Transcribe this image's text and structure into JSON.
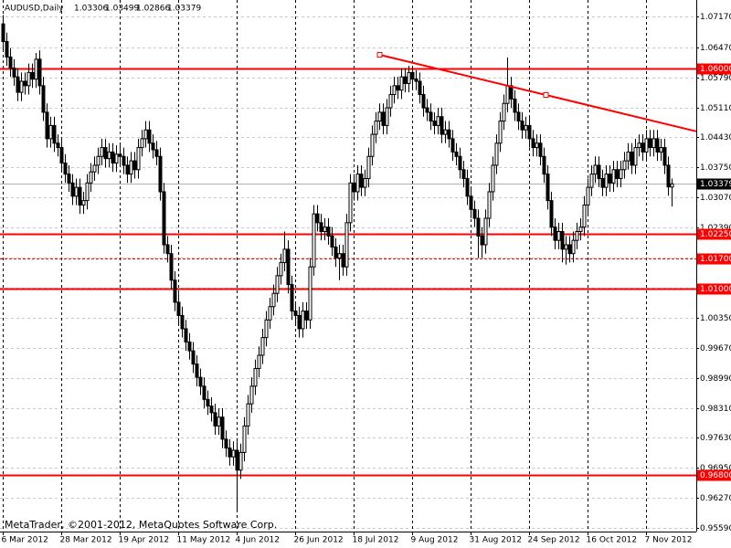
{
  "chart_data": {
    "type": "candlestick",
    "symbol": "AUDUSD,Daily",
    "copyright": "MetaTrader, ©2001-2012, MetaQuotes Software Corp.",
    "ylim": [
      0.9551,
      1.0754
    ],
    "yticks": [
      {
        "value": 1.0717,
        "label": "1.07170"
      },
      {
        "value": 1.0647,
        "label": "1.06470"
      },
      {
        "value": 1.0579,
        "label": "1.05790"
      },
      {
        "value": 1.0511,
        "label": "1.05110"
      },
      {
        "value": 1.0443,
        "label": "1.04430"
      },
      {
        "value": 1.0375,
        "label": "1.03750"
      },
      {
        "value": 1.0307,
        "label": "1.03070"
      },
      {
        "value": 1.0239,
        "label": "1.02390"
      },
      {
        "value": 1.0171,
        "label": "1.01710"
      },
      {
        "value": 1.0103,
        "label": "1.01030"
      },
      {
        "value": 1.0035,
        "label": "1.00350"
      },
      {
        "value": 0.9967,
        "label": "0.99670"
      },
      {
        "value": 0.9899,
        "label": "0.98990"
      },
      {
        "value": 0.9831,
        "label": "0.98310"
      },
      {
        "value": 0.9763,
        "label": "0.97630"
      },
      {
        "value": 0.9695,
        "label": "0.96950"
      },
      {
        "value": 0.9627,
        "label": "0.96270"
      },
      {
        "value": 0.9559,
        "label": "0.95590"
      }
    ],
    "grid": true,
    "bull_color": "#ffffff",
    "bear_color": "#000000",
    "level_color": "#ff0000",
    "levels": [
      {
        "value": 1.06,
        "label": "1.06000",
        "style": "solid"
      },
      {
        "value": 1.0225,
        "label": "1.02250",
        "style": "solid"
      },
      {
        "value": 1.017,
        "label": "1.01700",
        "style": "dashed"
      },
      {
        "value": 1.01,
        "label": "1.01000",
        "style": "solid"
      },
      {
        "value": 0.968,
        "label": "0.96800",
        "style": "solid"
      }
    ],
    "trendline": {
      "x": [
        103,
        148.5
      ],
      "y": [
        1.063,
        1.0539
      ]
    },
    "categories": [
      "6 Mar 2012",
      null,
      null,
      null,
      null,
      null,
      null,
      null,
      null,
      null,
      null,
      null,
      null,
      null,
      null,
      null,
      "28 Mar 2012",
      null,
      null,
      null,
      null,
      null,
      null,
      null,
      null,
      null,
      null,
      null,
      null,
      null,
      null,
      null,
      "19 Apr 2012",
      null,
      null,
      null,
      null,
      null,
      null,
      null,
      null,
      null,
      null,
      null,
      null,
      null,
      null,
      null,
      "11 May 2012",
      null,
      null,
      null,
      null,
      null,
      null,
      null,
      null,
      null,
      null,
      null,
      null,
      null,
      null,
      null,
      "4 Jun 2012",
      null,
      null,
      null,
      null,
      null,
      null,
      null,
      null,
      null,
      null,
      null,
      null,
      null,
      null,
      null,
      "26 Jun 2012",
      null,
      null,
      null,
      null,
      null,
      null,
      null,
      null,
      null,
      null,
      null,
      null,
      null,
      null,
      null,
      "18 Jul 2012",
      null,
      null,
      null,
      null,
      null,
      null,
      null,
      null,
      null,
      null,
      null,
      null,
      null,
      null,
      null,
      "9 Aug 2012",
      null,
      null,
      null,
      null,
      null,
      null,
      null,
      null,
      null,
      null,
      null,
      null,
      null,
      null,
      null,
      "31 Aug 2012",
      null,
      null,
      null,
      null,
      null,
      null,
      null,
      null,
      null,
      null,
      null,
      null,
      null,
      null,
      null,
      "24 Sep 2012",
      null,
      null,
      null,
      null,
      null,
      null,
      null,
      null,
      null,
      null,
      null,
      null,
      null,
      null,
      null,
      "16 Oct 2012",
      null,
      null,
      null,
      null,
      null,
      null,
      null,
      null,
      null,
      null,
      null,
      null,
      null,
      null,
      null,
      "7 Nov 2012",
      null,
      null,
      null,
      null,
      null,
      null,
      null
    ],
    "ohlc": [
      [
        1.07,
        1.072,
        1.064,
        1.066
      ],
      [
        1.066,
        1.068,
        1.0605,
        1.0625
      ],
      [
        1.0625,
        1.0645,
        1.058,
        1.06
      ],
      [
        1.06,
        1.062,
        1.056,
        1.058
      ],
      [
        1.058,
        1.06,
        1.0525,
        1.0545
      ],
      [
        1.0545,
        1.059,
        1.0525,
        1.057
      ],
      [
        1.057,
        1.059,
        1.054,
        1.056
      ],
      [
        1.056,
        1.061,
        1.054,
        1.059
      ],
      [
        1.059,
        1.061,
        1.0555,
        1.0575
      ],
      [
        1.0575,
        1.0634,
        1.0555,
        1.062
      ],
      [
        1.062,
        1.064,
        1.054,
        1.056
      ],
      [
        1.056,
        1.058,
        1.048,
        1.05
      ],
      [
        1.05,
        1.052,
        1.042,
        1.044
      ],
      [
        1.044,
        1.049,
        1.042,
        1.047
      ],
      [
        1.047,
        1.049,
        1.041,
        1.043
      ],
      [
        1.043,
        1.045,
        1.04,
        1.042
      ],
      [
        1.042,
        1.044,
        1.0365,
        1.0385
      ],
      [
        1.0385,
        1.0405,
        1.034,
        1.036
      ],
      [
        1.036,
        1.038,
        1.032,
        1.034
      ],
      [
        1.034,
        1.036,
        1.029,
        1.031
      ],
      [
        1.031,
        1.035,
        1.029,
        1.033
      ],
      [
        1.033,
        1.035,
        1.027,
        1.029
      ],
      [
        1.029,
        1.032,
        1.027,
        1.03
      ],
      [
        1.03,
        1.036,
        1.028,
        1.034
      ],
      [
        1.034,
        1.0385,
        1.032,
        1.0365
      ],
      [
        1.0365,
        1.04,
        1.0345,
        1.038
      ],
      [
        1.038,
        1.042,
        1.036,
        1.04
      ],
      [
        1.04,
        1.044,
        1.038,
        1.042
      ],
      [
        1.042,
        1.044,
        1.0375,
        1.0395
      ],
      [
        1.0395,
        1.043,
        1.0375,
        1.041
      ],
      [
        1.041,
        1.043,
        1.0365,
        1.0385
      ],
      [
        1.0385,
        1.0425,
        1.0365,
        1.0405
      ],
      [
        1.0405,
        1.0425,
        1.038,
        1.04
      ],
      [
        1.04,
        1.042,
        1.036,
        1.038
      ],
      [
        1.038,
        1.04,
        1.034,
        1.036
      ],
      [
        1.036,
        1.041,
        1.034,
        1.039
      ],
      [
        1.039,
        1.041,
        1.035,
        1.037
      ],
      [
        1.037,
        1.044,
        1.035,
        1.042
      ],
      [
        1.042,
        1.046,
        1.04,
        1.044
      ],
      [
        1.044,
        1.048,
        1.042,
        1.046
      ],
      [
        1.046,
        1.048,
        1.041,
        1.043
      ],
      [
        1.043,
        1.045,
        1.0395,
        1.0415
      ],
      [
        1.0415,
        1.0435,
        1.038,
        1.04
      ],
      [
        1.04,
        1.042,
        1.03,
        1.032
      ],
      [
        1.032,
        1.034,
        1.018,
        1.02
      ],
      [
        1.02,
        1.022,
        1.016,
        1.018
      ],
      [
        1.018,
        1.02,
        1.01,
        1.012
      ],
      [
        1.012,
        1.014,
        1.005,
        1.007
      ],
      [
        1.007,
        1.009,
        1.002,
        1.004
      ],
      [
        1.004,
        1.006,
        0.999,
        1.001
      ],
      [
        1.001,
        1.003,
        0.996,
        0.998
      ],
      [
        0.998,
        1.0,
        0.994,
        0.996
      ],
      [
        0.996,
        0.998,
        0.991,
        0.993
      ],
      [
        0.993,
        0.995,
        0.988,
        0.99
      ],
      [
        0.99,
        0.992,
        0.986,
        0.988
      ],
      [
        0.988,
        0.99,
        0.983,
        0.985
      ],
      [
        0.985,
        0.987,
        0.9815,
        0.9835
      ],
      [
        0.9835,
        0.9855,
        0.98,
        0.982
      ],
      [
        0.982,
        0.984,
        0.977,
        0.979
      ],
      [
        0.979,
        0.983,
        0.977,
        0.981
      ],
      [
        0.981,
        0.983,
        0.974,
        0.976
      ],
      [
        0.976,
        0.978,
        0.972,
        0.974
      ],
      [
        0.974,
        0.976,
        0.97,
        0.972
      ],
      [
        0.972,
        0.9755,
        0.97,
        0.9735
      ],
      [
        0.9735,
        0.9755,
        0.9596,
        0.969
      ],
      [
        0.969,
        0.975,
        0.967,
        0.973
      ],
      [
        0.973,
        0.981,
        0.971,
        0.979
      ],
      [
        0.979,
        0.986,
        0.977,
        0.984
      ],
      [
        0.984,
        0.99,
        0.982,
        0.988
      ],
      [
        0.988,
        0.994,
        0.986,
        0.992
      ],
      [
        0.992,
        0.997,
        0.99,
        0.995
      ],
      [
        0.995,
        1.001,
        0.993,
        0.999
      ],
      [
        0.999,
        1.005,
        0.997,
        1.003
      ],
      [
        1.003,
        1.008,
        1.001,
        1.006
      ],
      [
        1.006,
        1.011,
        1.004,
        1.009
      ],
      [
        1.009,
        1.015,
        1.007,
        1.013
      ],
      [
        1.013,
        1.018,
        1.011,
        1.016
      ],
      [
        1.016,
        1.023,
        1.014,
        1.019
      ],
      [
        1.019,
        1.021,
        1.009,
        1.011
      ],
      [
        1.011,
        1.013,
        1.003,
        1.005
      ],
      [
        1.005,
        1.007,
        1.002,
        1.004
      ],
      [
        1.004,
        1.006,
        0.999,
        1.001
      ],
      [
        1.001,
        1.007,
        0.999,
        1.005
      ],
      [
        1.005,
        1.007,
        1.001,
        1.003
      ],
      [
        1.003,
        1.017,
        1.001,
        1.015
      ],
      [
        1.015,
        1.029,
        1.013,
        1.027
      ],
      [
        1.027,
        1.029,
        1.023,
        1.025
      ],
      [
        1.025,
        1.027,
        1.021,
        1.023
      ],
      [
        1.023,
        1.026,
        1.021,
        1.024
      ],
      [
        1.024,
        1.026,
        1.02,
        1.022
      ],
      [
        1.022,
        1.024,
        1.0175,
        1.0195
      ],
      [
        1.0195,
        1.0215,
        1.015,
        1.017
      ],
      [
        1.017,
        1.02,
        1.012,
        1.018
      ],
      [
        1.018,
        1.02,
        1.013,
        1.015
      ],
      [
        1.015,
        1.027,
        1.013,
        1.025
      ],
      [
        1.025,
        1.036,
        1.023,
        1.034
      ],
      [
        1.034,
        1.036,
        1.03,
        1.032
      ],
      [
        1.032,
        1.038,
        1.03,
        1.036
      ],
      [
        1.036,
        1.038,
        1.031,
        1.033
      ],
      [
        1.033,
        1.037,
        1.031,
        1.035
      ],
      [
        1.035,
        1.042,
        1.033,
        1.04
      ],
      [
        1.04,
        1.047,
        1.038,
        1.045
      ],
      [
        1.045,
        1.05,
        1.043,
        1.048
      ],
      [
        1.048,
        1.052,
        1.046,
        1.05
      ],
      [
        1.05,
        1.052,
        1.045,
        1.047
      ],
      [
        1.047,
        1.053,
        1.045,
        1.051
      ],
      [
        1.051,
        1.056,
        1.049,
        1.054
      ],
      [
        1.054,
        1.058,
        1.052,
        1.056
      ],
      [
        1.056,
        1.058,
        1.053,
        1.055
      ],
      [
        1.055,
        1.06,
        1.053,
        1.058
      ],
      [
        1.058,
        1.06,
        1.0545,
        1.0565
      ],
      [
        1.0565,
        1.0605,
        1.0545,
        1.059
      ],
      [
        1.059,
        1.0605,
        1.0555,
        1.0575
      ],
      [
        1.0575,
        1.0595,
        1.055,
        1.057
      ],
      [
        1.057,
        1.059,
        1.052,
        1.054
      ],
      [
        1.054,
        1.056,
        1.049,
        1.051
      ],
      [
        1.051,
        1.053,
        1.048,
        1.05
      ],
      [
        1.05,
        1.052,
        1.046,
        1.048
      ],
      [
        1.048,
        1.05,
        1.045,
        1.047
      ],
      [
        1.047,
        1.051,
        1.045,
        1.049
      ],
      [
        1.049,
        1.051,
        1.043,
        1.045
      ],
      [
        1.045,
        1.048,
        1.043,
        1.046
      ],
      [
        1.046,
        1.048,
        1.042,
        1.044
      ],
      [
        1.044,
        1.046,
        1.039,
        1.041
      ],
      [
        1.041,
        1.043,
        1.038,
        1.04
      ],
      [
        1.04,
        1.042,
        1.035,
        1.037
      ],
      [
        1.037,
        1.039,
        1.033,
        1.035
      ],
      [
        1.035,
        1.037,
        1.029,
        1.031
      ],
      [
        1.031,
        1.033,
        1.026,
        1.028
      ],
      [
        1.028,
        1.03,
        1.024,
        1.026
      ],
      [
        1.026,
        1.028,
        1.017,
        1.022
      ],
      [
        1.022,
        1.024,
        1.017,
        1.02
      ],
      [
        1.02,
        1.028,
        1.018,
        1.026
      ],
      [
        1.026,
        1.034,
        1.024,
        1.032
      ],
      [
        1.032,
        1.04,
        1.03,
        1.038
      ],
      [
        1.038,
        1.045,
        1.036,
        1.043
      ],
      [
        1.043,
        1.05,
        1.041,
        1.048
      ],
      [
        1.048,
        1.054,
        1.046,
        1.052
      ],
      [
        1.052,
        1.0624,
        1.05,
        1.056
      ],
      [
        1.056,
        1.058,
        1.051,
        1.053
      ],
      [
        1.053,
        1.055,
        1.048,
        1.05
      ],
      [
        1.05,
        1.052,
        1.046,
        1.048
      ],
      [
        1.048,
        1.05,
        1.044,
        1.046
      ],
      [
        1.046,
        1.049,
        1.044,
        1.047
      ],
      [
        1.047,
        1.049,
        1.042,
        1.044
      ],
      [
        1.044,
        1.046,
        1.04,
        1.042
      ],
      [
        1.042,
        1.045,
        1.04,
        1.043
      ],
      [
        1.043,
        1.045,
        1.038,
        1.04
      ],
      [
        1.04,
        1.042,
        1.034,
        1.036
      ],
      [
        1.036,
        1.038,
        1.028,
        1.03
      ],
      [
        1.03,
        1.032,
        1.022,
        1.024
      ],
      [
        1.024,
        1.026,
        1.019,
        1.021
      ],
      [
        1.021,
        1.025,
        1.019,
        1.023
      ],
      [
        1.023,
        1.025,
        1.016,
        1.019
      ],
      [
        1.019,
        1.022,
        1.0155,
        1.02
      ],
      [
        1.02,
        1.022,
        1.016,
        1.018
      ],
      [
        1.018,
        1.023,
        1.016,
        1.021
      ],
      [
        1.021,
        1.025,
        1.019,
        1.023
      ],
      [
        1.023,
        1.026,
        1.021,
        1.024
      ],
      [
        1.024,
        1.031,
        1.022,
        1.029
      ],
      [
        1.029,
        1.035,
        1.027,
        1.033
      ],
      [
        1.033,
        1.038,
        1.031,
        1.036
      ],
      [
        1.036,
        1.04,
        1.034,
        1.038
      ],
      [
        1.038,
        1.04,
        1.033,
        1.035
      ],
      [
        1.035,
        1.037,
        1.031,
        1.033
      ],
      [
        1.033,
        1.038,
        1.031,
        1.036
      ],
      [
        1.036,
        1.038,
        1.032,
        1.034
      ],
      [
        1.034,
        1.039,
        1.032,
        1.037
      ],
      [
        1.037,
        1.039,
        1.033,
        1.035
      ],
      [
        1.035,
        1.039,
        1.033,
        1.037
      ],
      [
        1.037,
        1.041,
        1.035,
        1.039
      ],
      [
        1.039,
        1.043,
        1.037,
        1.041
      ],
      [
        1.041,
        1.043,
        1.036,
        1.038
      ],
      [
        1.038,
        1.044,
        1.036,
        1.042
      ],
      [
        1.042,
        1.045,
        1.04,
        1.043
      ],
      [
        1.043,
        1.045,
        1.039,
        1.041
      ],
      [
        1.041,
        1.046,
        1.039,
        1.044
      ],
      [
        1.044,
        1.046,
        1.04,
        1.042
      ],
      [
        1.042,
        1.046,
        1.04,
        1.044
      ],
      [
        1.044,
        1.046,
        1.039,
        1.041
      ],
      [
        1.041,
        1.044,
        1.039,
        1.042
      ],
      [
        1.042,
        1.044,
        1.036,
        1.038
      ],
      [
        1.038,
        1.04,
        1.0311,
        1.0331
      ],
      [
        1.03306,
        1.03499,
        1.02866,
        1.03379
      ]
    ]
  }
}
